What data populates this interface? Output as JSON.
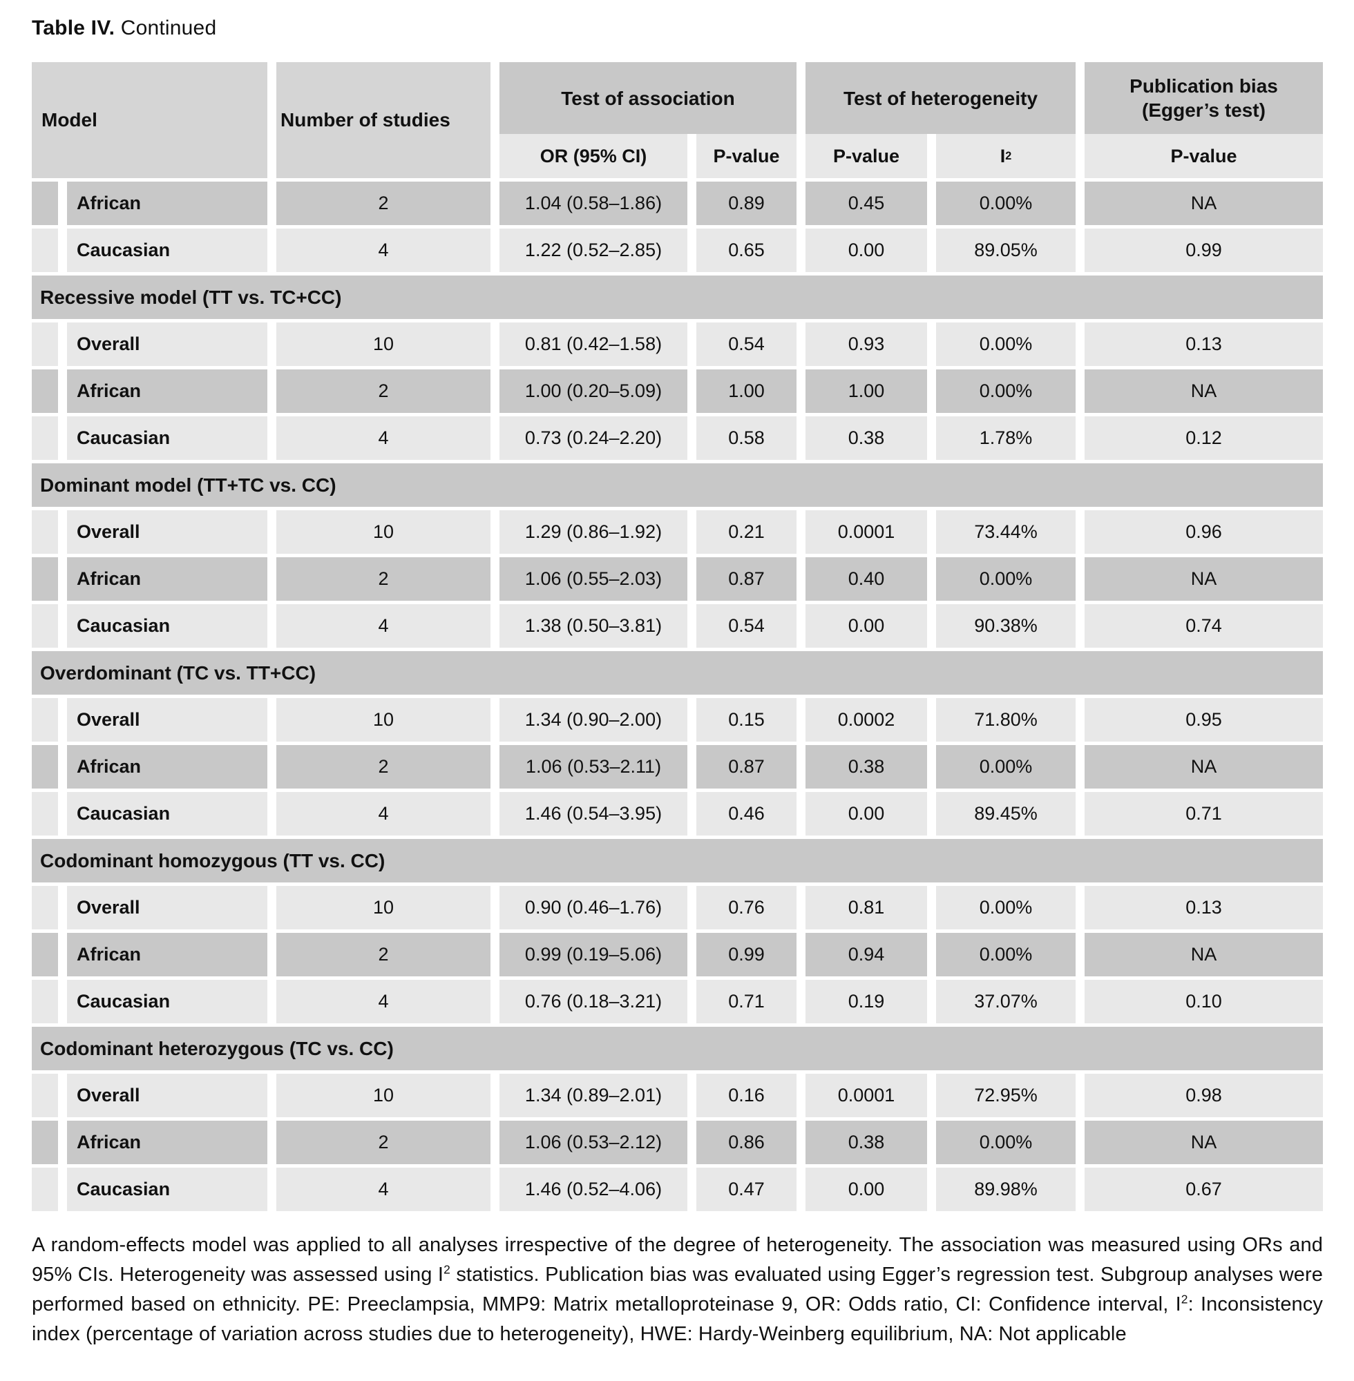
{
  "title": {
    "label": "Table IV.",
    "continued": "Continued"
  },
  "colors": {
    "dark_cell": "#c8c8c8",
    "light_cell": "#e8e8e8",
    "header_cell": "#d5d5d5",
    "text": "#111111",
    "background": "#ffffff"
  },
  "table": {
    "headers": {
      "model": "Model",
      "number_of_studies": "Number of studies",
      "test_of_association": "Test of association",
      "test_of_heterogeneity": "Test of heterogeneity",
      "publication_bias_line1": "Publication bias",
      "publication_bias_line2": "(Egger’s test)",
      "or_ci": "OR (95% CI)",
      "p_value_association": "P-value",
      "p_value_heterogeneity": "P-value",
      "i2_base": "I",
      "i2_sup": "2",
      "p_value_publication": "P-value"
    },
    "rows": [
      {
        "type": "data",
        "shade": "dark",
        "label": "African",
        "num": "2",
        "or": "1.04 (0.58–1.86)",
        "p_assoc": "0.89",
        "p_het": "0.45",
        "i2": "0.00%",
        "p_pub": "NA"
      },
      {
        "type": "data",
        "shade": "light",
        "label": "Caucasian",
        "num": "4",
        "or": "1.22 (0.52–2.85)",
        "p_assoc": "0.65",
        "p_het": "0.00",
        "i2": "89.05%",
        "p_pub": "0.99"
      },
      {
        "type": "section",
        "label": "Recessive model (TT vs. TC+CC)"
      },
      {
        "type": "data",
        "shade": "light",
        "label": "Overall",
        "num": "10",
        "or": "0.81 (0.42–1.58)",
        "p_assoc": "0.54",
        "p_het": "0.93",
        "i2": "0.00%",
        "p_pub": "0.13"
      },
      {
        "type": "data",
        "shade": "dark",
        "label": "African",
        "num": "2",
        "or": "1.00 (0.20–5.09)",
        "p_assoc": "1.00",
        "p_het": "1.00",
        "i2": "0.00%",
        "p_pub": "NA"
      },
      {
        "type": "data",
        "shade": "light",
        "label": "Caucasian",
        "num": "4",
        "or": "0.73 (0.24–2.20)",
        "p_assoc": "0.58",
        "p_het": "0.38",
        "i2": "1.78%",
        "p_pub": "0.12"
      },
      {
        "type": "section",
        "label": "Dominant model (TT+TC vs. CC)"
      },
      {
        "type": "data",
        "shade": "light",
        "label": "Overall",
        "num": "10",
        "or": "1.29 (0.86–1.92)",
        "p_assoc": "0.21",
        "p_het": "0.0001",
        "i2": "73.44%",
        "p_pub": "0.96"
      },
      {
        "type": "data",
        "shade": "dark",
        "label": "African",
        "num": "2",
        "or": "1.06 (0.55–2.03)",
        "p_assoc": "0.87",
        "p_het": "0.40",
        "i2": "0.00%",
        "p_pub": "NA"
      },
      {
        "type": "data",
        "shade": "light",
        "label": "Caucasian",
        "num": "4",
        "or": "1.38 (0.50–3.81)",
        "p_assoc": "0.54",
        "p_het": "0.00",
        "i2": "90.38%",
        "p_pub": "0.74"
      },
      {
        "type": "section",
        "label": "Overdominant (TC vs. TT+CC)"
      },
      {
        "type": "data",
        "shade": "light",
        "label": "Overall",
        "num": "10",
        "or": "1.34 (0.90–2.00)",
        "p_assoc": "0.15",
        "p_het": "0.0002",
        "i2": "71.80%",
        "p_pub": "0.95"
      },
      {
        "type": "data",
        "shade": "dark",
        "label": "African",
        "num": "2",
        "or": "1.06 (0.53–2.11)",
        "p_assoc": "0.87",
        "p_het": "0.38",
        "i2": "0.00%",
        "p_pub": "NA"
      },
      {
        "type": "data",
        "shade": "light",
        "label": "Caucasian",
        "num": "4",
        "or": "1.46 (0.54–3.95)",
        "p_assoc": "0.46",
        "p_het": "0.00",
        "i2": "89.45%",
        "p_pub": "0.71"
      },
      {
        "type": "section",
        "label": "Codominant homozygous (TT vs. CC)"
      },
      {
        "type": "data",
        "shade": "light",
        "label": "Overall",
        "num": "10",
        "or": "0.90 (0.46–1.76)",
        "p_assoc": "0.76",
        "p_het": "0.81",
        "i2": "0.00%",
        "p_pub": "0.13"
      },
      {
        "type": "data",
        "shade": "dark",
        "label": "African",
        "num": "2",
        "or": "0.99 (0.19–5.06)",
        "p_assoc": "0.99",
        "p_het": "0.94",
        "i2": "0.00%",
        "p_pub": "NA"
      },
      {
        "type": "data",
        "shade": "light",
        "label": "Caucasian",
        "num": "4",
        "or": "0.76 (0.18–3.21)",
        "p_assoc": "0.71",
        "p_het": "0.19",
        "i2": "37.07%",
        "p_pub": "0.10"
      },
      {
        "type": "section",
        "label": "Codominant heterozygous (TC vs. CC)"
      },
      {
        "type": "data",
        "shade": "light",
        "label": "Overall",
        "num": "10",
        "or": "1.34 (0.89–2.01)",
        "p_assoc": "0.16",
        "p_het": "0.0001",
        "i2": "72.95%",
        "p_pub": "0.98"
      },
      {
        "type": "data",
        "shade": "dark",
        "label": "African",
        "num": "2",
        "or": "1.06 (0.53–2.12)",
        "p_assoc": "0.86",
        "p_het": "0.38",
        "i2": "0.00%",
        "p_pub": "NA"
      },
      {
        "type": "data",
        "shade": "light",
        "label": "Caucasian",
        "num": "4",
        "or": "1.46 (0.52–4.06)",
        "p_assoc": "0.47",
        "p_het": "0.00",
        "i2": "89.98%",
        "p_pub": "0.67"
      }
    ]
  },
  "footnote_parts": [
    {
      "text": "A random-effects model was applied to all analyses irrespective of the degree of heterogeneity. The association was measured using ORs and 95% CIs. Heterogeneity was assessed using I"
    },
    {
      "sup": "2"
    },
    {
      "text": " statistics. Publication bias was evaluated using Egger’s regression test. Subgroup analyses were performed based on ethnicity. PE: Preeclampsia, MMP9: Matrix metalloproteinase 9, OR: Odds ratio, CI: Confidence interval, I"
    },
    {
      "sup": "2"
    },
    {
      "text": ": Inconsistency index (percentage of variation across studies due to heterogeneity), HWE: Hardy-Weinberg equilibrium, NA: Not applicable"
    }
  ]
}
